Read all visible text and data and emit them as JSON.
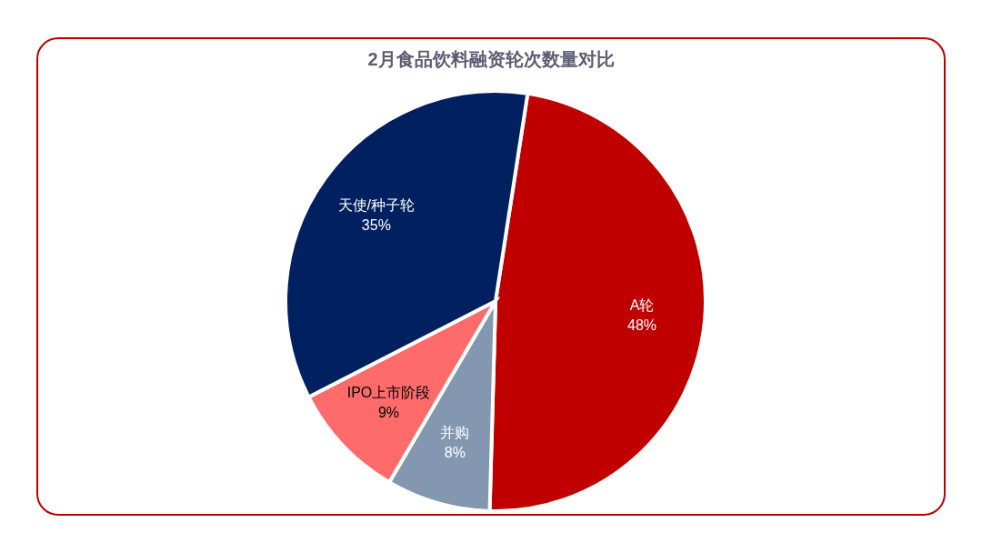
{
  "chart_data": {
    "type": "pie",
    "title": "2月食品饮料融资轮次数量对比",
    "categories": [
      "A轮",
      "并购",
      "IPO上市阶段",
      "天使/种子轮"
    ],
    "values": [
      48,
      8,
      9,
      35
    ],
    "colors": [
      "#c00000",
      "#8497b0",
      "#ff6b6b",
      "#002060"
    ],
    "value_labels": [
      "48%",
      "8%",
      "9%",
      "35%"
    ],
    "legend": false
  }
}
